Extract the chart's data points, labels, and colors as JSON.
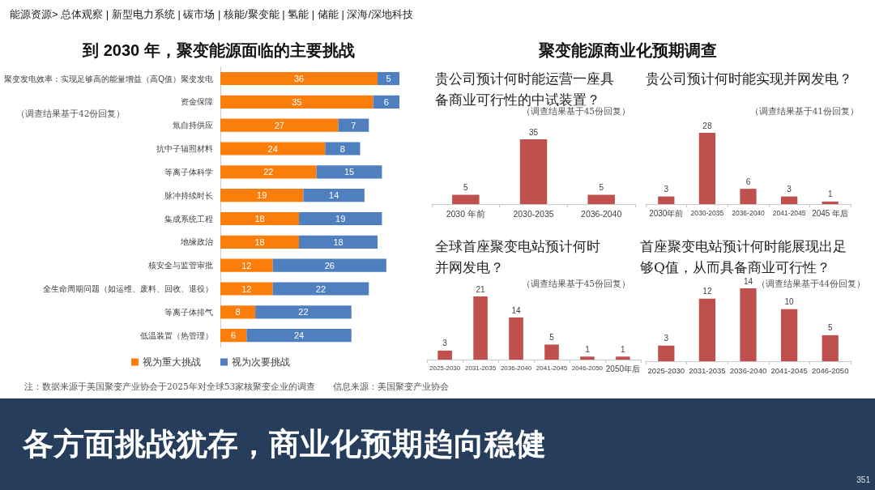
{
  "chart_data": [
    {
      "type": "bar",
      "orientation": "horizontal",
      "stacked": true,
      "title": "到 2030 年，聚变能源面临的主要挑战",
      "annotations": [
        "（调查结果基于42份回复）"
      ],
      "categories": [
        "聚变发电效率：实现足够高的能量增益（高Q值）聚变发电",
        "资金保障",
        "氚自持供应",
        "抗中子辐照材料",
        "等离子体科学",
        "脉冲持续时长",
        "集成系统工程",
        "地缘政治",
        "核安全与监管审批",
        "全生命周期问题（如运维、废料、回收、退役）",
        "等离子体排气",
        "低温装置（热管理）"
      ],
      "series": [
        {
          "name": "视为重大挑战",
          "color": "#fb7e0c",
          "values": [
            36,
            35,
            27,
            24,
            22,
            19,
            18,
            18,
            12,
            12,
            8,
            6
          ]
        },
        {
          "name": "视为次要挑战",
          "color": "#4f7fbf",
          "values": [
            5,
            6,
            7,
            8,
            15,
            14,
            19,
            18,
            26,
            22,
            22,
            24
          ]
        }
      ],
      "data_labels": true,
      "legend": "bottom",
      "tick_labels": "y"
    },
    {
      "type": "bar",
      "title": "贵公司预计何时能运营一座具备商业可行性的中试装置？",
      "annotations": [
        "（调查结果基于45份回复）"
      ],
      "categories": [
        "2030 年前",
        "2030-2035",
        "2036-2040"
      ],
      "values": [
        5,
        35,
        5
      ],
      "color": "#c0504d",
      "data_labels": true,
      "tick_labels": "x"
    },
    {
      "type": "bar",
      "title": "贵公司预计何时能实现并网发电？",
      "annotations": [
        "（调查结果基于41份回复）"
      ],
      "categories": [
        "2030年前",
        "2030-2035",
        "2036-2040",
        "2041-2045",
        "2045 年后"
      ],
      "values": [
        3,
        28,
        6,
        3,
        1
      ],
      "color": "#c0504d",
      "data_labels": true,
      "tick_labels": "x"
    },
    {
      "type": "bar",
      "title": "全球首座聚变电站预计何时并网发电？",
      "annotations": [
        "（调查结果基于45份回复）"
      ],
      "categories": [
        "2025-2030",
        "2031-2035",
        "2036-2040",
        "2041-2045",
        "2046-2050",
        "2050年后"
      ],
      "values": [
        3,
        21,
        14,
        5,
        1,
        1
      ],
      "color": "#c0504d",
      "data_labels": true,
      "tick_labels": "x"
    },
    {
      "type": "bar",
      "title": "首座聚变电站预计何时能展现出足够Q值，从而具备商业可行性？",
      "annotations": [
        "（调查结果基于44份回复）"
      ],
      "categories": [
        "2025-2030",
        "2031-2035",
        "2036-2040",
        "2041-2045",
        "2046-2050"
      ],
      "values": [
        3,
        12,
        14,
        10,
        5
      ],
      "color": "#c0504d",
      "data_labels": true,
      "tick_labels": "x"
    },
    {
      "type": "other",
      "title": "各方面挑战犹存，商业化预期趋向稳健",
      "annotations": [
        "能源资源> 总体观察 | 新型电力系统 | 碳市场 | 核能/聚变能 | 氢能 | 储能 | 深海/深地科技",
        "聚变能源商业化预期调查",
        "注：数据来源于美国聚变产业协会于2025年对全球53家核聚变企业的调查　　信息来源：美国聚变产业协会",
        "351"
      ]
    }
  ]
}
